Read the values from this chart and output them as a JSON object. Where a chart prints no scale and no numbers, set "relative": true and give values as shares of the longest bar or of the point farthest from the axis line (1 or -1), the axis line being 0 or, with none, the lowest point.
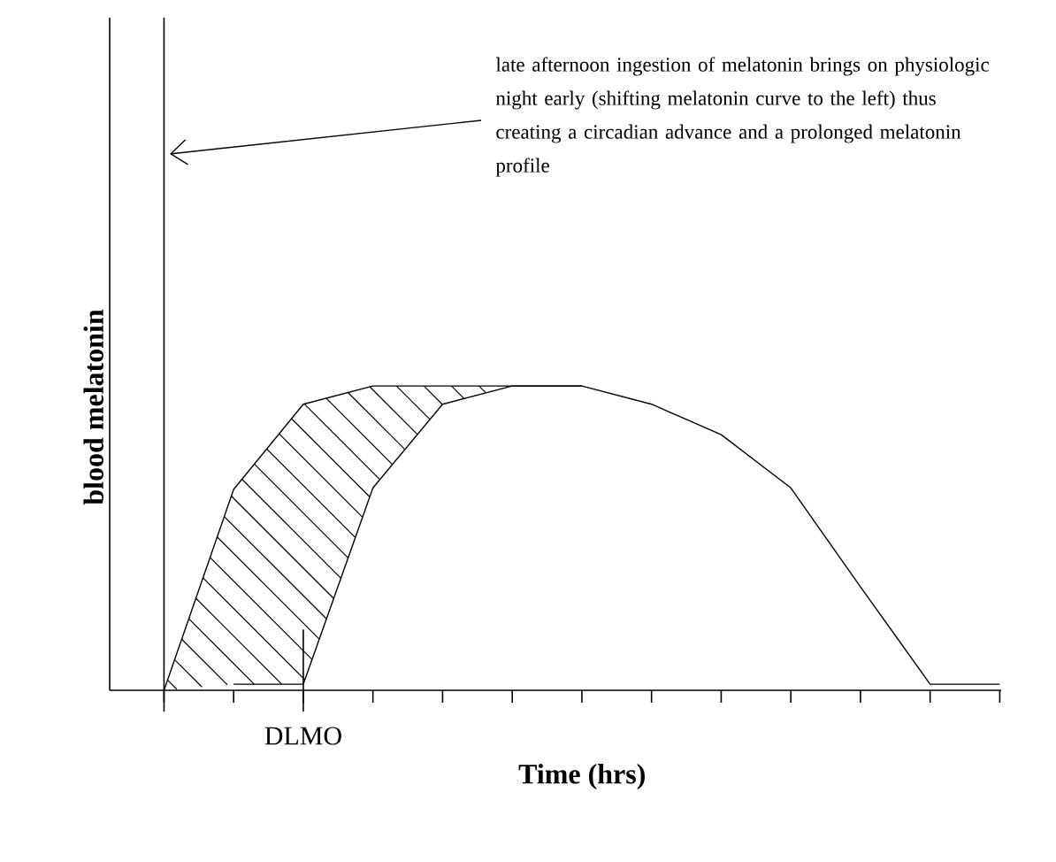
{
  "chart_data": {
    "type": "line",
    "relative": true,
    "xlabel": "Time (hrs)",
    "ylabel": "blood melatonin",
    "categories": [
      null,
      null,
      null,
      null,
      null,
      null,
      null,
      null,
      null,
      null,
      null,
      null,
      null
    ],
    "series": [
      {
        "color": "#000000",
        "values": [
          0,
          0.66,
          0.94,
          1,
          1,
          1,
          1,
          null,
          null,
          null,
          null,
          null,
          null
        ]
      },
      {
        "color": "#000000",
        "values": [
          null,
          0.02,
          0.02,
          0.665,
          0.94,
          1,
          1,
          0.94,
          0.84,
          0.665,
          0.34,
          0.02,
          0.02
        ]
      }
    ],
    "annotations": [
      "DLMO",
      "late afternoon ingestion of melatonin brings on physiologic night early (shifting melatonin curve to the left) thus creating a circadian advance and a prolonged melatonin profile"
    ]
  }
}
